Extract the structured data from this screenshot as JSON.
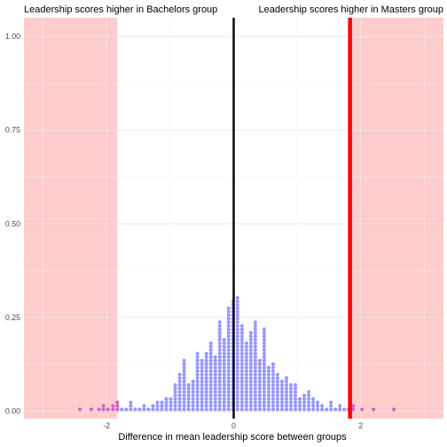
{
  "chart_data": {
    "type": "dotplot",
    "xlabel": "Difference in mean leadership score between groups",
    "ylabel": "",
    "xlim": [
      -3.3,
      3.3
    ],
    "ylim": [
      -0.02,
      1.05
    ],
    "x_ticks": [
      -2,
      0,
      2
    ],
    "x_tick_labels": [
      "-2",
      "0",
      "2"
    ],
    "y_ticks": [
      0.0,
      0.25,
      0.5,
      0.75,
      1.0
    ],
    "y_tick_labels": [
      "0.00",
      "0.25",
      "0.50",
      "0.75",
      "1.00"
    ],
    "grid": true,
    "dot_color": "#9999ff",
    "dot_colored_in_region_color": "#cc66cc",
    "annotations": {
      "left": "Leadership scores higher in Bachelors group",
      "right": "Leadership scores higher in Masters group"
    },
    "shaded_regions": [
      {
        "from": -3.3,
        "to": -1.83,
        "color": "#ffcccc"
      },
      {
        "from": 1.83,
        "to": 3.3,
        "color": "#ffcccc"
      }
    ],
    "vertical_lines": [
      {
        "x": 0,
        "color": "#000000"
      },
      {
        "x": 1.83,
        "color": "#ff0000"
      }
    ],
    "dot_unit": 0.01,
    "bins": [
      {
        "x": -2.42,
        "n": 1
      },
      {
        "x": -2.24,
        "n": 1
      },
      {
        "x": -2.12,
        "n": 1
      },
      {
        "x": -2.05,
        "n": 2
      },
      {
        "x": -1.98,
        "n": 1
      },
      {
        "x": -1.9,
        "n": 2
      },
      {
        "x": -1.83,
        "n": 3
      },
      {
        "x": -1.76,
        "n": 1
      },
      {
        "x": -1.69,
        "n": 1
      },
      {
        "x": -1.62,
        "n": 3
      },
      {
        "x": -1.55,
        "n": 1
      },
      {
        "x": -1.48,
        "n": 1
      },
      {
        "x": -1.41,
        "n": 2
      },
      {
        "x": -1.34,
        "n": 1
      },
      {
        "x": -1.27,
        "n": 2
      },
      {
        "x": -1.2,
        "n": 3
      },
      {
        "x": -1.13,
        "n": 3
      },
      {
        "x": -1.06,
        "n": 4
      },
      {
        "x": -0.99,
        "n": 4
      },
      {
        "x": -0.92,
        "n": 8
      },
      {
        "x": -0.85,
        "n": 11
      },
      {
        "x": -0.78,
        "n": 15
      },
      {
        "x": -0.71,
        "n": 8
      },
      {
        "x": -0.64,
        "n": 9
      },
      {
        "x": -0.57,
        "n": 17
      },
      {
        "x": -0.5,
        "n": 15
      },
      {
        "x": -0.43,
        "n": 17
      },
      {
        "x": -0.36,
        "n": 20
      },
      {
        "x": -0.29,
        "n": 16
      },
      {
        "x": -0.22,
        "n": 26
      },
      {
        "x": -0.15,
        "n": 21
      },
      {
        "x": -0.08,
        "n": 30
      },
      {
        "x": -0.01,
        "n": 32
      },
      {
        "x": 0.06,
        "n": 33
      },
      {
        "x": 0.13,
        "n": 25
      },
      {
        "x": 0.2,
        "n": 20
      },
      {
        "x": 0.27,
        "n": 23
      },
      {
        "x": 0.34,
        "n": 26
      },
      {
        "x": 0.41,
        "n": 15
      },
      {
        "x": 0.48,
        "n": 24
      },
      {
        "x": 0.55,
        "n": 13
      },
      {
        "x": 0.62,
        "n": 14
      },
      {
        "x": 0.69,
        "n": 11
      },
      {
        "x": 0.76,
        "n": 9
      },
      {
        "x": 0.83,
        "n": 10
      },
      {
        "x": 0.9,
        "n": 8
      },
      {
        "x": 0.97,
        "n": 8
      },
      {
        "x": 1.04,
        "n": 4
      },
      {
        "x": 1.11,
        "n": 5
      },
      {
        "x": 1.18,
        "n": 6
      },
      {
        "x": 1.25,
        "n": 4
      },
      {
        "x": 1.32,
        "n": 3
      },
      {
        "x": 1.39,
        "n": 2
      },
      {
        "x": 1.46,
        "n": 1
      },
      {
        "x": 1.53,
        "n": 3
      },
      {
        "x": 1.6,
        "n": 1
      },
      {
        "x": 1.67,
        "n": 2
      },
      {
        "x": 1.74,
        "n": 1
      },
      {
        "x": 1.81,
        "n": 1
      },
      {
        "x": 1.88,
        "n": 2
      },
      {
        "x": 2.02,
        "n": 1
      },
      {
        "x": 2.2,
        "n": 1
      },
      {
        "x": 2.52,
        "n": 1
      }
    ]
  }
}
